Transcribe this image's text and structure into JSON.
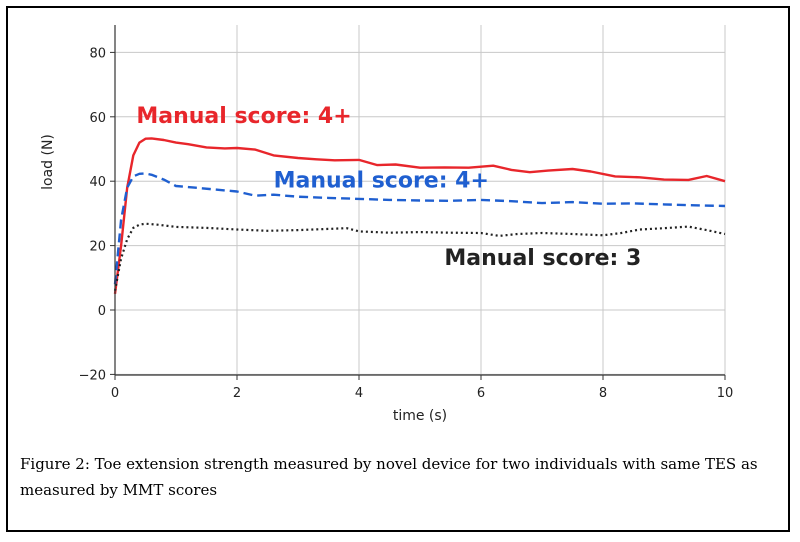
{
  "caption": "Figure 2: Toe extension strength measured by novel device for two individuals with same TES as measured by MMT scores",
  "chart_data": {
    "type": "line",
    "xlabel": "time (s)",
    "ylabel": "load (N)",
    "xlim": [
      0,
      10
    ],
    "ylim": [
      -20,
      85
    ],
    "xticks": [
      0,
      2,
      4,
      6,
      8,
      10
    ],
    "yticks": [
      -20,
      0,
      20,
      40,
      60,
      80
    ],
    "grid": true,
    "series": [
      {
        "name": "Manual score: 4+",
        "color": "#e8262b",
        "style": "solid",
        "label_pos": [
          0.35,
          58
        ],
        "x": [
          0,
          0.1,
          0.2,
          0.3,
          0.4,
          0.5,
          0.6,
          0.8,
          1.0,
          1.2,
          1.5,
          1.8,
          2.0,
          2.3,
          2.6,
          3.0,
          3.3,
          3.6,
          4.0,
          4.3,
          4.6,
          5.0,
          5.4,
          5.8,
          6.2,
          6.5,
          6.8,
          7.1,
          7.5,
          7.8,
          8.2,
          8.6,
          9.0,
          9.4,
          9.7,
          10.0
        ],
        "values": [
          5,
          20,
          38,
          48,
          52,
          53.2,
          53.3,
          52.8,
          52,
          51.5,
          50.5,
          50.2,
          50.3,
          49.8,
          48,
          47.2,
          46.8,
          46.5,
          46.6,
          45,
          45.2,
          44.2,
          44.3,
          44.2,
          44.8,
          43.5,
          42.8,
          43.3,
          43.8,
          43,
          41.5,
          41.2,
          40.5,
          40.4,
          41.6,
          40
        ]
      },
      {
        "name": "Manual score: 4+",
        "color": "#1f5fd0",
        "style": "dashed",
        "label_pos": [
          2.6,
          38
        ],
        "x": [
          0,
          0.1,
          0.2,
          0.3,
          0.4,
          0.5,
          0.6,
          0.8,
          1.0,
          1.3,
          1.6,
          2.0,
          2.3,
          2.6,
          3.0,
          3.5,
          4.0,
          4.5,
          5.0,
          5.5,
          6.0,
          6.5,
          7.0,
          7.5,
          8.0,
          8.5,
          9.0,
          9.5,
          10.0
        ],
        "values": [
          8,
          28,
          38,
          41.5,
          42.3,
          42.4,
          42,
          40.5,
          38.5,
          38,
          37.5,
          36.8,
          35.5,
          35.8,
          35.2,
          34.8,
          34.5,
          34.2,
          34.0,
          33.9,
          34.2,
          33.8,
          33.2,
          33.5,
          33.0,
          33.1,
          32.8,
          32.5,
          32.3
        ]
      },
      {
        "name": "Manual score: 3",
        "color": "#222222",
        "style": "dotted",
        "label_pos": [
          5.4,
          14
        ],
        "x": [
          0,
          0.1,
          0.2,
          0.3,
          0.4,
          0.5,
          0.7,
          1.0,
          1.5,
          2.0,
          2.5,
          3.0,
          3.5,
          3.8,
          4.0,
          4.5,
          5.0,
          5.5,
          6.0,
          6.3,
          6.6,
          7.0,
          7.5,
          8.0,
          8.3,
          8.6,
          9.0,
          9.4,
          9.7,
          10.0
        ],
        "values": [
          6,
          16,
          22,
          25.5,
          26.5,
          26.8,
          26.5,
          25.8,
          25.5,
          25.0,
          24.6,
          24.8,
          25.2,
          25.4,
          24.4,
          24.0,
          24.2,
          24.0,
          23.9,
          23.0,
          23.6,
          23.9,
          23.6,
          23.2,
          23.9,
          25.0,
          25.4,
          25.9,
          24.8,
          23.6
        ]
      }
    ]
  }
}
